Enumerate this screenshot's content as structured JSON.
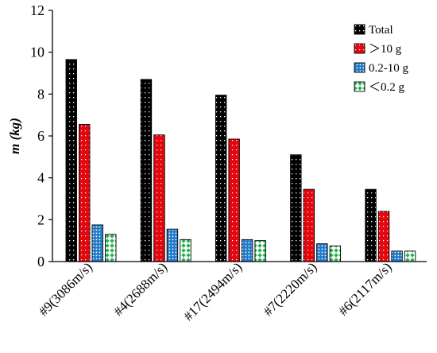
{
  "chart_data": {
    "type": "bar",
    "title": "",
    "xlabel": "",
    "ylabel": "m (kg)",
    "ylim": [
      0,
      12
    ],
    "yticks": [
      "0",
      "2",
      "4",
      "6",
      "8",
      "10",
      "12"
    ],
    "grid": false,
    "legend_position": "top-right",
    "categories": [
      "#9(3086m/s)",
      "#4(2688m/s)",
      "#17(2494m/s)",
      "#7(2220m/s)",
      "#6(2117m/s)"
    ],
    "series": [
      {
        "name": "Total",
        "pattern": "dotted-black",
        "color": "#000000",
        "values": [
          9.65,
          8.7,
          7.95,
          5.1,
          3.45
        ]
      },
      {
        "name": "＞10 g",
        "pattern": "dotted-red",
        "color": "#e3080f",
        "values": [
          6.55,
          6.05,
          5.85,
          3.45,
          2.4
        ]
      },
      {
        "name": "0.2-10 g",
        "pattern": "dotted-blue",
        "color": "#1e78c8",
        "values": [
          1.75,
          1.55,
          1.05,
          0.85,
          0.5
        ]
      },
      {
        "name": "＜0.2 g",
        "pattern": "diamond-green",
        "color": "#22b24c",
        "values": [
          1.3,
          1.05,
          1.0,
          0.75,
          0.5
        ]
      }
    ]
  }
}
